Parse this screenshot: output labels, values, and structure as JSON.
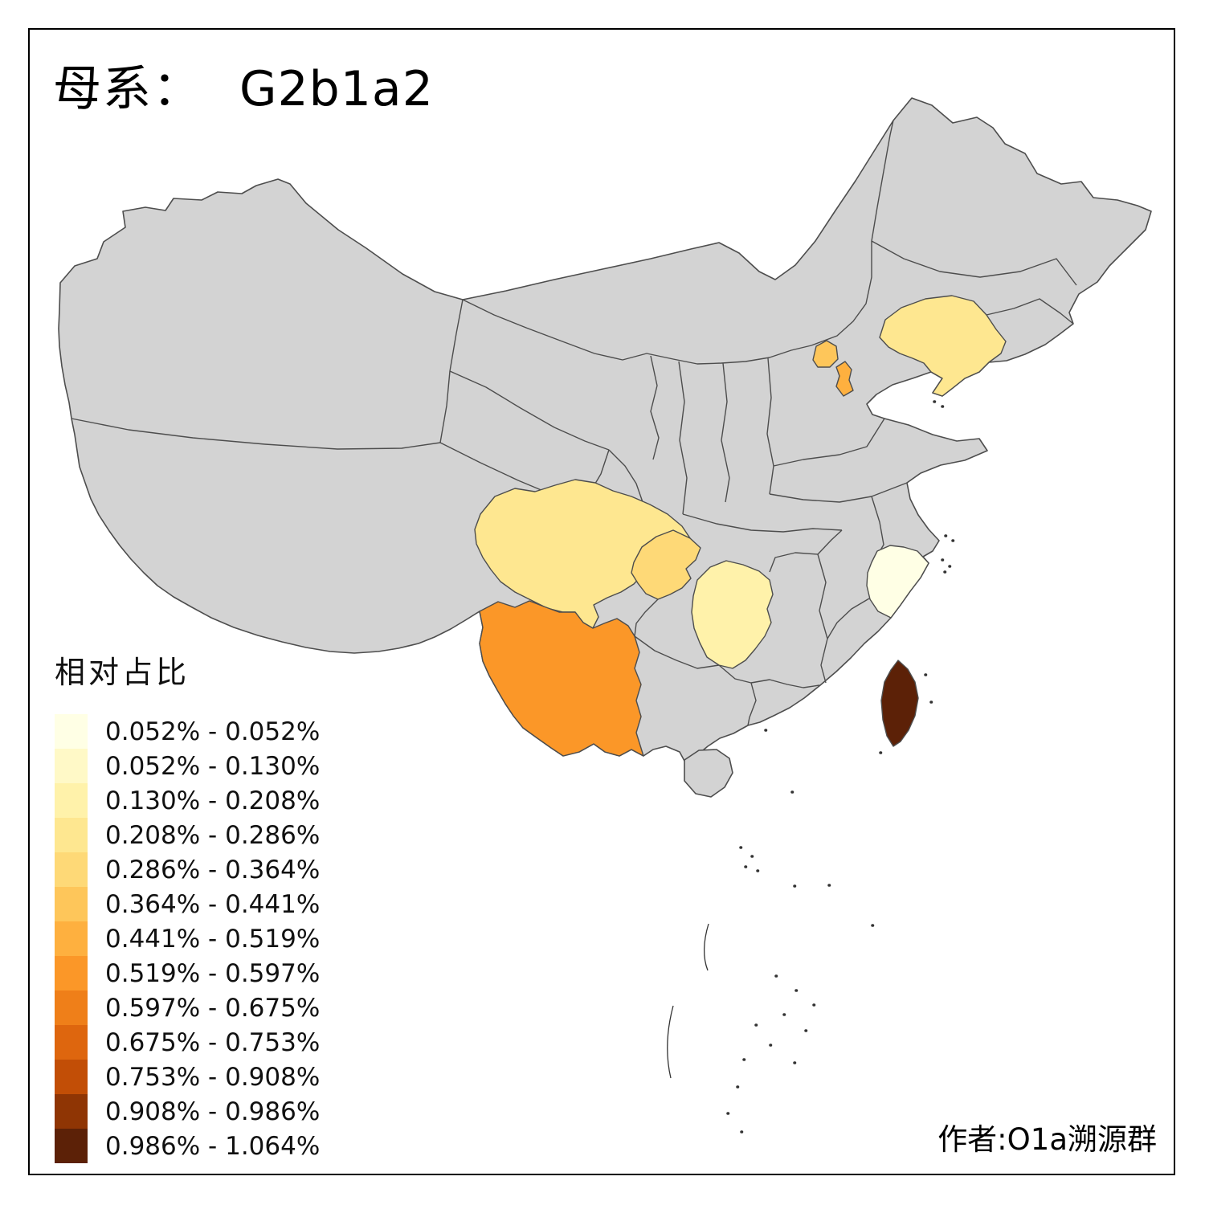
{
  "title": {
    "prefix": "母系：",
    "haplogroup": "G2b1a2"
  },
  "footer": {
    "author": "作者:O1a溯源群"
  },
  "legend": {
    "title": "相对占比",
    "classes": [
      {
        "range": "0.052% - 0.052%",
        "color": "#FFFFE5"
      },
      {
        "range": "0.052% - 0.130%",
        "color": "#FFF9C7"
      },
      {
        "range": "0.130% - 0.208%",
        "color": "#FFF2AA"
      },
      {
        "range": "0.208% - 0.286%",
        "color": "#FEE790"
      },
      {
        "range": "0.286% - 0.364%",
        "color": "#FED977"
      },
      {
        "range": "0.364% - 0.441%",
        "color": "#FEC65A"
      },
      {
        "range": "0.441% - 0.519%",
        "color": "#FEB03F"
      },
      {
        "range": "0.519% - 0.597%",
        "color": "#FB9728"
      },
      {
        "range": "0.597% - 0.675%",
        "color": "#EF7F19"
      },
      {
        "range": "0.675% - 0.753%",
        "color": "#DE660E"
      },
      {
        "range": "0.753% - 0.908%",
        "color": "#C24E06"
      },
      {
        "range": "0.908% - 0.986%",
        "color": "#8F3504"
      },
      {
        "range": "0.986% - 1.064%",
        "color": "#5C2107"
      }
    ]
  },
  "map": {
    "colors": {
      "land": "#D3D3D3",
      "province_border": "#4D4D4D",
      "background": "#FFFFFF",
      "island_outline": "#333333"
    },
    "provinces": [
      {
        "id": "zhejiang",
        "name": "浙江 Zhejiang",
        "color": "#FFFFE5",
        "range": "0.052% - 0.052%"
      },
      {
        "id": "hunan",
        "name": "湖南 Hunan",
        "color": "#FFF2AA",
        "range": "0.130% - 0.208%"
      },
      {
        "id": "liaoning",
        "name": "辽宁 Liaoning",
        "color": "#FEE790",
        "range": "0.208% - 0.286%"
      },
      {
        "id": "sichuan",
        "name": "四川 Sichuan",
        "color": "#FEE790",
        "range": "0.208% - 0.286%"
      },
      {
        "id": "chongqing",
        "name": "重庆 Chongqing",
        "color": "#FED977",
        "range": "0.286% - 0.364%"
      },
      {
        "id": "beijing",
        "name": "北京 Beijing",
        "color": "#FEC65A",
        "range": "0.364% - 0.441%"
      },
      {
        "id": "tianjin",
        "name": "天津 Tianjin",
        "color": "#FEB03F",
        "range": "0.441% - 0.519%"
      },
      {
        "id": "yunnan",
        "name": "云南 Yunnan",
        "color": "#FB9728",
        "range": "0.519% - 0.597%"
      },
      {
        "id": "taiwan",
        "name": "台湾 Taiwan",
        "color": "#5C2107",
        "range": "0.986% - 1.064%"
      }
    ]
  }
}
